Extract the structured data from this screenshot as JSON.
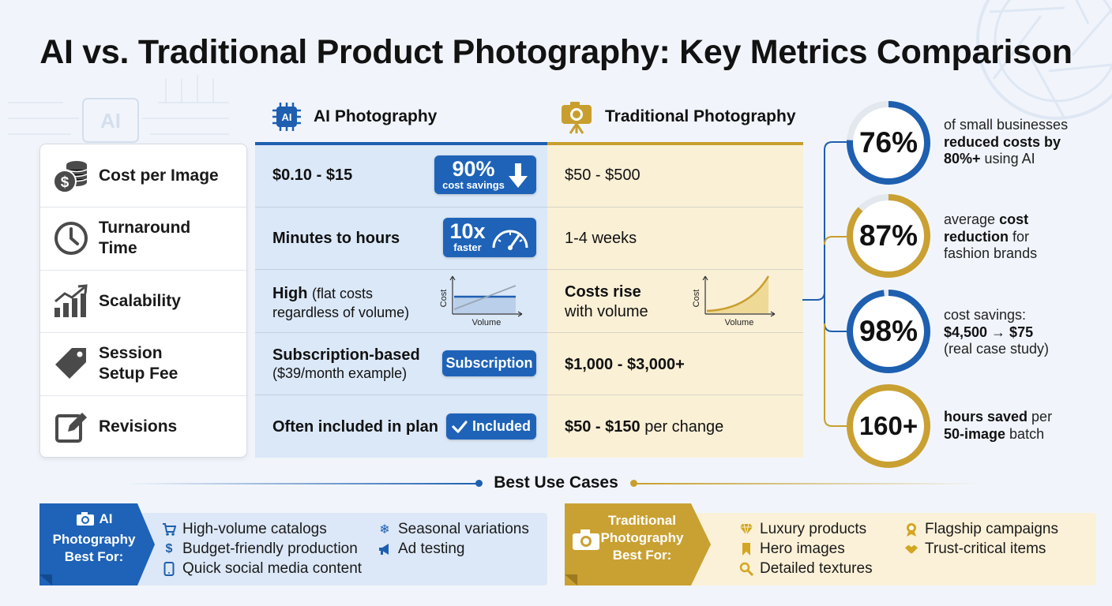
{
  "title": "AI vs. Traditional Product Photography: Key Metrics Comparison",
  "columns": {
    "ai": "AI Photography",
    "ai_chip": "AI",
    "traditional": "Traditional Photography"
  },
  "bg_ai_text": "AI",
  "metrics": [
    {
      "label": "Cost per Image",
      "icon": "coins-dollar-icon",
      "ai": "$0.10 - $15",
      "ai_badge_big": "90%",
      "ai_badge_small": "cost savings",
      "trad": "$50 - $500"
    },
    {
      "label": "Turnaround Time",
      "label_l1": "Turnaround",
      "label_l2": "Time",
      "icon": "clock-icon",
      "ai": "Minutes to hours",
      "ai_badge_big": "10x",
      "ai_badge_small": "faster",
      "trad": "1-4 weeks"
    },
    {
      "label": "Scalability",
      "icon": "bar-chart-up-icon",
      "ai_bold": "High",
      "ai_rest_l1": "(flat costs",
      "ai_rest_l2": "regardless of volume)",
      "trad_l1": "Costs rise",
      "trad_l2": "with volume",
      "chart_ylabel": "Cost",
      "chart_xlabel": "Volume"
    },
    {
      "label": "Session Setup Fee",
      "label_l1": "Session",
      "label_l2": "Setup Fee",
      "icon": "price-tag-icon",
      "ai_l1": "Subscription-based",
      "ai_l2": "($39/month example)",
      "ai_badge": "Subscription",
      "trad": "$1,000 - $3,000+"
    },
    {
      "label": "Revisions",
      "icon": "edit-icon",
      "ai": "Often included in plan",
      "ai_badge": "Included",
      "trad_bold": "$50 - $150",
      "trad_rest": "per change"
    }
  ],
  "stats": [
    {
      "value": "76%",
      "fill": 0.76,
      "color": "#1e5fb0",
      "d1": "of small businesses",
      "d2": "reduced costs by",
      "d3": "80%+",
      "d4": " using AI"
    },
    {
      "value": "87%",
      "fill": 0.87,
      "color": "#c9a032",
      "d1": "average ",
      "d1b": "cost",
      "d2b": "reduction",
      "d2": " for",
      "d3": "fashion brands"
    },
    {
      "value": "98%",
      "fill": 0.98,
      "color": "#1e5fb0",
      "d1": "cost savings:",
      "d2": "$4,500 → $75",
      "d3": "(real case study)"
    },
    {
      "value": "160+",
      "fill": 1.0,
      "color": "#c9a032",
      "d1b": "hours saved",
      "d1": " per",
      "d2b": "50-image",
      "d2": " batch"
    }
  ],
  "use_cases": {
    "title": "Best Use Cases",
    "ai_tag_l1": "AI",
    "ai_tag_l2": "Photography",
    "ai_tag_l3": "Best For:",
    "ai_items": [
      {
        "text": "High-volume catalogs",
        "icon": "cart-icon"
      },
      {
        "text": "Budget-friendly production",
        "icon": "dollar-icon"
      },
      {
        "text": "Quick social media content",
        "icon": "phone-icon"
      },
      {
        "text": "Seasonal variations",
        "icon": "snowflake-icon"
      },
      {
        "text": "Ad testing",
        "icon": "megaphone-icon"
      }
    ],
    "trad_tag_l1": "Traditional",
    "trad_tag_l2": "Photography",
    "trad_tag_l3": "Best For:",
    "trad_items": [
      {
        "text": "Luxury products",
        "icon": "diamond-icon"
      },
      {
        "text": "Hero images",
        "icon": "bookmark-icon"
      },
      {
        "text": "Detailed textures",
        "icon": "magnifier-icon"
      },
      {
        "text": "Flagship campaigns",
        "icon": "award-icon"
      },
      {
        "text": "Trust-critical items",
        "icon": "handshake-icon"
      }
    ]
  },
  "colors": {
    "ai_blue": "#1e5fb0",
    "trad_gold": "#c89f2e",
    "ai_bg": "#dbe8f8",
    "trad_bg": "#faf0d6"
  }
}
